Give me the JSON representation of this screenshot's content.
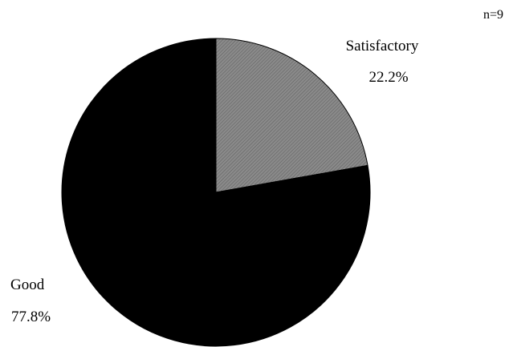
{
  "chart_data": {
    "type": "pie",
    "note": "n=9",
    "slices": [
      {
        "label": "Satisfactory",
        "value": 22.2,
        "value_label": "22.2%",
        "color": "#808080"
      },
      {
        "label": "Good",
        "value": 77.8,
        "value_label": "77.8%",
        "color": "#000000"
      }
    ],
    "start_angle_deg": 0,
    "direction": "clockwise",
    "legend": "none"
  }
}
